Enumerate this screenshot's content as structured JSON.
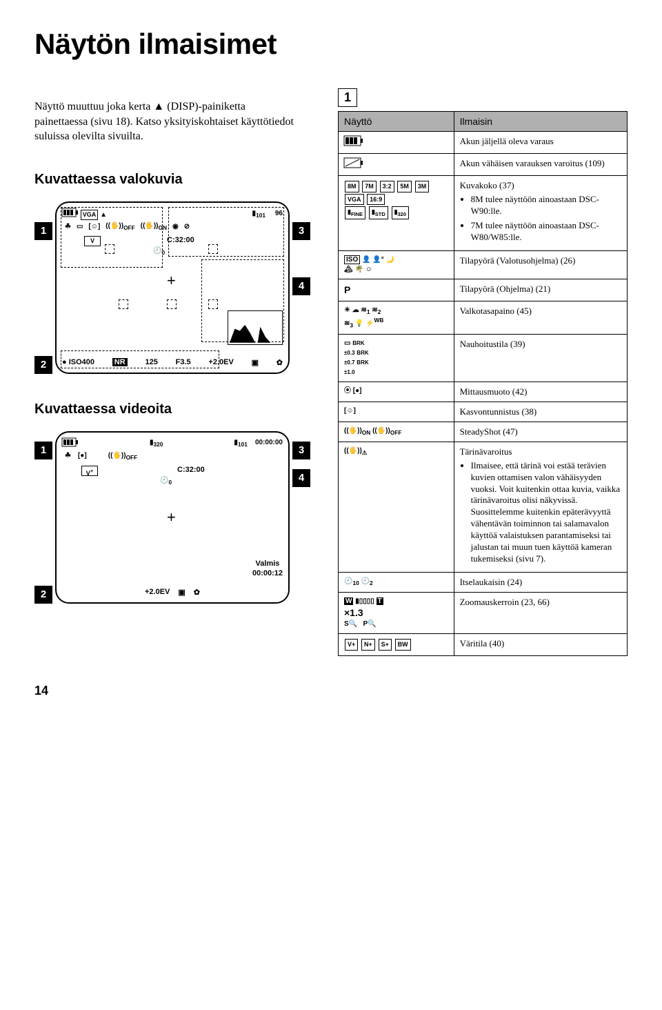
{
  "title": "Näytön ilmaisimet",
  "intro": "Näyttö muuttuu joka kerta ▲ (DISP)-painiketta painettaessa (sivu 18). Katso yksityiskohtaiset käyttötiedot suluissa olevilta sivuilta.",
  "photo_label": "Kuvattaessa valokuvia",
  "video_label": "Kuvattaessa videoita",
  "lcd1": {
    "vga": "VGA",
    "memstick": "101",
    "count": "96",
    "on": "ON",
    "diag": "C:32:00",
    "timer": "0",
    "iso": "ISO400",
    "nr": "NR",
    "shutter": "125",
    "aperture": "F3.5",
    "ev": "+2.0EV",
    "c1": "1",
    "c2": "2",
    "c3": "3",
    "c4": "4"
  },
  "lcd2": {
    "rate": "320",
    "memstick": "101",
    "time": "00:00:00",
    "diag": "C:32:00",
    "timer": "0",
    "ready": "Valmis",
    "elapsed": "00:00:12",
    "ev": "+2.0EV",
    "c1": "1",
    "c2": "2",
    "c3": "3",
    "c4": "4"
  },
  "group_label": "1",
  "table": {
    "head_display": "Näyttö",
    "head_indicator": "Ilmaisin",
    "rows": [
      {
        "display_type": "battery_full",
        "indicator": "Akun jäljellä oleva varaus"
      },
      {
        "display_type": "battery_low",
        "indicator": "Akun vähäisen varauksen varoitus (109)"
      },
      {
        "display_type": "size_icons",
        "sizes": [
          "8M",
          "7M",
          "3:2",
          "5M",
          "3M",
          "VGA",
          "16:9"
        ],
        "qualities": [
          "FINE",
          "STD",
          "320"
        ],
        "indicator": "Kuvakoko (37)",
        "bullets": [
          "  8M  tulee näyttöön ainoastaan DSC-W90:lle.",
          "  7M  tulee näyttöön ainoastaan DSC-W80/W85:lle."
        ]
      },
      {
        "display_type": "dial_scene",
        "dial_label": "ISO",
        "indicator": "Tilapyörä (Valotusohjelma) (26)"
      },
      {
        "display_type": "p_mode",
        "p": "P",
        "indicator": "Tilapyörä (Ohjelma) (21)"
      },
      {
        "display_type": "wb_icons",
        "wb": "WB",
        "indicator": "Valkotasapaino (45)"
      },
      {
        "display_type": "brk_icons",
        "brk": [
          "BRK",
          "BRK",
          "BRK"
        ],
        "brkv": [
          "±0.3",
          "±0.7",
          "±1.0"
        ],
        "indicator": "Nauhoitustila (39)"
      },
      {
        "display_type": "metering",
        "indicator": "Mittausmuoto (42)"
      },
      {
        "display_type": "face",
        "indicator": "Kasvontunnistus (38)"
      },
      {
        "display_type": "steadyshot",
        "labels": [
          "ON",
          "OFF"
        ],
        "indicator": "SteadyShot (47)"
      },
      {
        "display_type": "shake",
        "indicator": "Tärinävaroitus",
        "bullets": [
          "Ilmaisee, että tärinä voi estää terävien kuvien ottamisen valon vähäisyyden vuoksi. Voit kuitenkin ottaa kuvia, vaikka tärinävaroitus olisi näkyvissä. Suosittelemme kuitenkin epäterävyyttä vähentävän toiminnon tai salamavalon käyttöä valaistuksen parantamiseksi tai jalustan tai muun tuen käyttöä kameran tukemiseksi (sivu 7)."
        ]
      },
      {
        "display_type": "timer",
        "labels": [
          "10",
          "2"
        ],
        "indicator": "Itselaukaisin (24)"
      },
      {
        "display_type": "zoom",
        "zoom": "×1.3",
        "sq": "S Q   P Q",
        "wt": "W ▮▯▯▯▯ T",
        "indicator": "Zoomauskerroin (23, 66)"
      },
      {
        "display_type": "color_mode",
        "modes": [
          "V+",
          "N+",
          "S+",
          "BW"
        ],
        "indicator": "Väritila (40)"
      }
    ]
  },
  "pageno": "14"
}
